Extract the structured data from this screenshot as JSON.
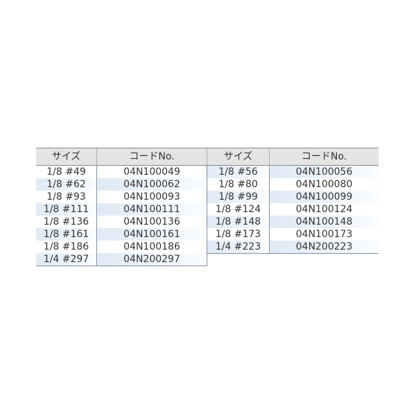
{
  "headers": {
    "size": "サイズ",
    "code": "コードNo."
  },
  "left_rows": [
    {
      "size": "1/8 #49",
      "code": "04N100049"
    },
    {
      "size": "1/8 #62",
      "code": "04N100062"
    },
    {
      "size": "1/8 #93",
      "code": "04N100093"
    },
    {
      "size": "1/8 #111",
      "code": "04N100111"
    },
    {
      "size": "1/8 #136",
      "code": "04N100136"
    },
    {
      "size": "1/8 #161",
      "code": "04N100161"
    },
    {
      "size": "1/8 #186",
      "code": "04N100186"
    },
    {
      "size": "1/4 #297",
      "code": "04N200297"
    }
  ],
  "right_rows": [
    {
      "size": "1/8 #56",
      "code": "04N100056"
    },
    {
      "size": "1/8 #80",
      "code": "04N100080"
    },
    {
      "size": "1/8 #99",
      "code": "04N100099"
    },
    {
      "size": "1/8 #124",
      "code": "04N100124"
    },
    {
      "size": "1/8 #148",
      "code": "04N100148"
    },
    {
      "size": "1/8 #173",
      "code": "04N100173"
    },
    {
      "size": "1/4 #223",
      "code": "04N200223"
    }
  ],
  "colors": {
    "header_bg": "#e4e4e4",
    "row_highlight": "#dfeaf5"
  }
}
